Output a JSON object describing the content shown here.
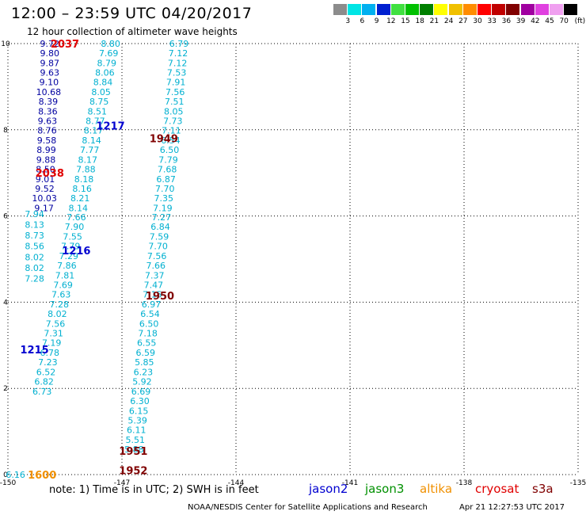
{
  "header": {
    "title": "12:00 – 23:59 UTC 04/20/2017",
    "subtitle": "12 hour collection of altimeter wave heights"
  },
  "color_scale": {
    "unit_label": "(ft)",
    "labels": [
      "3",
      "6",
      "9",
      "12",
      "15",
      "18",
      "21",
      "24",
      "27",
      "30",
      "33",
      "36",
      "39",
      "42",
      "45",
      "70"
    ],
    "colors": [
      "#8c8c8c",
      "#00e5e5",
      "#00b0f0",
      "#0020d0",
      "#40e040",
      "#00c000",
      "#008000",
      "#ffff00",
      "#f0c000",
      "#ff8c00",
      "#ff0000",
      "#c00000",
      "#800000",
      "#a000a0",
      "#e040e0",
      "#f0a0f0",
      "#000000"
    ]
  },
  "footer": {
    "note": "note:  1) Time is in UTC;  2) SWH is in feet",
    "legend": [
      {
        "name": "jason2",
        "color": "#0000d0"
      },
      {
        "name": "jason3",
        "color": "#009000"
      },
      {
        "name": "altika",
        "color": "#f09000"
      },
      {
        "name": "cryosat",
        "color": "#e00000"
      },
      {
        "name": "s3a",
        "color": "#800000"
      }
    ],
    "credit": "NOAA/NESDIS Center for Satellite Applications and Research",
    "timestamp": "Apr 21 12:27:53 UTC 2017"
  },
  "chart_data": {
    "type": "scatter",
    "title": "12 hour collection of altimeter wave heights",
    "xlim": [
      -150,
      -135
    ],
    "ylim": [
      0,
      10
    ],
    "x_ticks": [
      "-150",
      "-147",
      "-144",
      "-141",
      "-138",
      "-135"
    ],
    "y_ticks": [
      "0",
      "2",
      "4",
      "6",
      "8",
      "10"
    ],
    "grid": true,
    "series": [
      {
        "name": "jason2",
        "color": "#0000d0",
        "pass_labels": [
          {
            "text": "1217",
            "x": -147.3,
            "y": 8.1
          },
          {
            "text": "1216",
            "x": -148.2,
            "y": 5.2
          },
          {
            "text": "1215",
            "x": -149.3,
            "y": 2.9
          }
        ]
      },
      {
        "name": "altika",
        "color": "#f09000",
        "pass_labels": [
          {
            "text": "1600",
            "x": -149.1,
            "y": 0.0
          }
        ]
      },
      {
        "name": "cryosat",
        "color": "#e00000",
        "pass_labels": [
          {
            "text": "2037",
            "x": -148.5,
            "y": 10.0
          },
          {
            "text": "2038",
            "x": -148.9,
            "y": 7.0
          }
        ]
      },
      {
        "name": "s3a",
        "color": "#800000",
        "pass_labels": [
          {
            "text": "1949",
            "x": -145.9,
            "y": 7.8
          },
          {
            "text": "1950",
            "x": -146.0,
            "y": 4.15
          },
          {
            "text": "1951",
            "x": -146.7,
            "y": 0.55
          },
          {
            "text": "1952",
            "x": -146.7,
            "y": 0.1
          }
        ]
      }
    ],
    "tracks": [
      {
        "series": "cryosat",
        "color": "#0000a0",
        "points": [
          [
            -148.9,
            10.0,
            "9.72"
          ],
          [
            -148.9,
            9.78,
            "9.80"
          ],
          [
            -148.9,
            9.55,
            "9.87"
          ],
          [
            -148.9,
            9.33,
            "9.63"
          ],
          [
            -148.92,
            9.11,
            "9.10"
          ],
          [
            -148.93,
            8.88,
            "10.68"
          ],
          [
            -148.94,
            8.66,
            "8.39"
          ],
          [
            -148.95,
            8.43,
            "8.36"
          ],
          [
            -148.96,
            8.21,
            "9.63"
          ],
          [
            -148.97,
            7.99,
            "8.76"
          ],
          [
            -148.98,
            7.76,
            "9.58"
          ],
          [
            -148.99,
            7.54,
            "8.99"
          ],
          [
            -149.0,
            7.31,
            "9.88"
          ],
          [
            -149.01,
            7.09,
            "8.50"
          ],
          [
            -149.02,
            6.86,
            "9.01"
          ],
          [
            -149.03,
            6.64,
            "9.52"
          ],
          [
            -149.04,
            6.42,
            "10.03"
          ],
          [
            -149.05,
            6.19,
            "9.17"
          ]
        ]
      },
      {
        "series": "jason2",
        "color": "#00b0d0",
        "points": [
          [
            -147.3,
            10.0,
            "8.80"
          ],
          [
            -147.35,
            9.78,
            "7.69"
          ],
          [
            -147.4,
            9.55,
            "8.79"
          ],
          [
            -147.45,
            9.33,
            "8.06"
          ],
          [
            -147.5,
            9.11,
            "8.84"
          ],
          [
            -147.55,
            8.88,
            "8.05"
          ],
          [
            -147.6,
            8.66,
            "8.75"
          ],
          [
            -147.65,
            8.43,
            "8.51"
          ],
          [
            -147.7,
            8.21,
            "8.77"
          ],
          [
            -147.75,
            7.99,
            "8.17"
          ],
          [
            -147.8,
            7.76,
            "8.14"
          ],
          [
            -147.85,
            7.54,
            "7.77"
          ],
          [
            -147.9,
            7.31,
            "8.17"
          ],
          [
            -147.95,
            7.09,
            "7.88"
          ],
          [
            -148.0,
            6.86,
            "8.18"
          ],
          [
            -148.05,
            6.64,
            "8.16"
          ],
          [
            -148.1,
            6.42,
            "8.21"
          ],
          [
            -148.15,
            6.19,
            "8.14"
          ],
          [
            -148.2,
            5.97,
            "7.66"
          ],
          [
            -148.25,
            5.75,
            "7.90"
          ],
          [
            -148.3,
            5.52,
            "7.55"
          ],
          [
            -148.35,
            5.3,
            "7.79"
          ],
          [
            -148.4,
            5.07,
            "7.29"
          ],
          [
            -148.45,
            4.85,
            "7.86"
          ],
          [
            -148.5,
            4.62,
            "7.81"
          ],
          [
            -148.55,
            4.4,
            "7.69"
          ],
          [
            -148.6,
            4.18,
            "7.63"
          ],
          [
            -148.65,
            3.95,
            "7.28"
          ],
          [
            -148.7,
            3.73,
            "8.02"
          ],
          [
            -148.75,
            3.5,
            "7.56"
          ],
          [
            -148.8,
            3.28,
            "7.31"
          ],
          [
            -148.85,
            3.06,
            "7.19"
          ],
          [
            -148.9,
            2.83,
            "6.78"
          ],
          [
            -148.95,
            2.61,
            "7.23"
          ],
          [
            -149.0,
            2.38,
            "6.52"
          ],
          [
            -149.05,
            2.16,
            "6.82"
          ],
          [
            -149.1,
            1.93,
            "6.73"
          ]
        ]
      },
      {
        "series": "jason2",
        "color": "#00b0d0",
        "points": [
          [
            -149.3,
            6.05,
            "7.94"
          ],
          [
            -149.3,
            5.8,
            "8.13"
          ],
          [
            -149.3,
            5.55,
            "8.73"
          ],
          [
            -149.3,
            5.3,
            "8.56"
          ],
          [
            -149.3,
            5.05,
            "8.02"
          ],
          [
            -149.3,
            4.8,
            "8.02"
          ],
          [
            -149.3,
            4.55,
            "7.28"
          ]
        ]
      },
      {
        "series": "s3a",
        "color": "#00b0d0",
        "points": [
          [
            -145.5,
            10.0,
            "6.79"
          ],
          [
            -145.52,
            9.78,
            "7.12"
          ],
          [
            -145.54,
            9.55,
            "7.12"
          ],
          [
            -145.56,
            9.33,
            "7.53"
          ],
          [
            -145.58,
            9.11,
            "7.91"
          ],
          [
            -145.6,
            8.88,
            "7.56"
          ],
          [
            -145.62,
            8.66,
            "7.51"
          ],
          [
            -145.64,
            8.43,
            "8.05"
          ],
          [
            -145.66,
            8.21,
            "7.73"
          ],
          [
            -145.7,
            7.99,
            "7.11"
          ],
          [
            -145.72,
            7.76,
            "6.54"
          ],
          [
            -145.75,
            7.54,
            "6.50"
          ],
          [
            -145.78,
            7.31,
            "7.79"
          ],
          [
            -145.81,
            7.09,
            "7.68"
          ],
          [
            -145.84,
            6.86,
            "6.87"
          ],
          [
            -145.87,
            6.64,
            "7.70"
          ],
          [
            -145.9,
            6.42,
            "7.35"
          ],
          [
            -145.93,
            6.19,
            "7.19"
          ],
          [
            -145.96,
            5.97,
            "7.27"
          ],
          [
            -145.99,
            5.75,
            "6.84"
          ],
          [
            -146.02,
            5.52,
            "7.59"
          ],
          [
            -146.05,
            5.3,
            "7.70"
          ],
          [
            -146.08,
            5.07,
            "7.56"
          ],
          [
            -146.11,
            4.85,
            "7.66"
          ],
          [
            -146.14,
            4.62,
            "7.37"
          ],
          [
            -146.17,
            4.4,
            "7.47"
          ],
          [
            -146.2,
            4.18,
            "7.15"
          ],
          [
            -146.23,
            3.95,
            "6.97"
          ],
          [
            -146.26,
            3.73,
            "6.54"
          ],
          [
            -146.29,
            3.5,
            "6.50"
          ],
          [
            -146.32,
            3.28,
            "7.18"
          ],
          [
            -146.35,
            3.06,
            "6.55"
          ],
          [
            -146.38,
            2.83,
            "6.59"
          ],
          [
            -146.41,
            2.61,
            "5.85"
          ],
          [
            -146.44,
            2.38,
            "6.23"
          ],
          [
            -146.47,
            2.16,
            "5.92"
          ],
          [
            -146.5,
            1.93,
            "6.69"
          ],
          [
            -146.53,
            1.71,
            "6.30"
          ],
          [
            -146.56,
            1.48,
            "6.15"
          ],
          [
            -146.59,
            1.26,
            "5.39"
          ],
          [
            -146.62,
            1.04,
            "6.11"
          ],
          [
            -146.65,
            0.81,
            "5.51"
          ],
          [
            -146.68,
            0.59,
            "5.88"
          ]
        ]
      },
      {
        "series": "altika",
        "color": "#00b0d0",
        "points": [
          [
            -149.8,
            0.0,
            "6.16"
          ]
        ]
      }
    ]
  }
}
